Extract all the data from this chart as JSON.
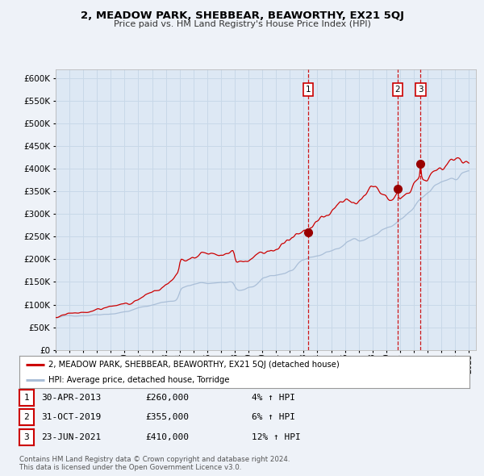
{
  "title": "2, MEADOW PARK, SHEBBEAR, BEAWORTHY, EX21 5QJ",
  "subtitle": "Price paid vs. HM Land Registry's House Price Index (HPI)",
  "background_color": "#eef2f8",
  "plot_bg_color": "#dde8f4",
  "grid_color": "#c8d8e8",
  "red_line_color": "#cc0000",
  "blue_line_color": "#aabfd8",
  "sale_dot_color": "#990000",
  "vline_color": "#cc0000",
  "legend_label_red": "2, MEADOW PARK, SHEBBEAR, BEAWORTHY, EX21 5QJ (detached house)",
  "legend_label_blue": "HPI: Average price, detached house, Torridge",
  "sales": [
    {
      "label": "1",
      "date": 2013.33,
      "price": 260000,
      "display_date": "30-APR-2013",
      "display_price": "£260,000",
      "pct": "4%",
      "direction": "↑"
    },
    {
      "label": "2",
      "date": 2019.83,
      "price": 355000,
      "display_date": "31-OCT-2019",
      "display_price": "£355,000",
      "pct": "6%",
      "direction": "↑"
    },
    {
      "label": "3",
      "date": 2021.48,
      "price": 410000,
      "display_date": "23-JUN-2021",
      "display_price": "£410,000",
      "pct": "12%",
      "direction": "↑"
    }
  ],
  "footer_line1": "Contains HM Land Registry data © Crown copyright and database right 2024.",
  "footer_line2": "This data is licensed under the Open Government Licence v3.0.",
  "ylim": [
    0,
    620000
  ],
  "yticks": [
    0,
    50000,
    100000,
    150000,
    200000,
    250000,
    300000,
    350000,
    400000,
    450000,
    500000,
    550000,
    600000
  ],
  "xlim_start": 1995.0,
  "xlim_end": 2025.5
}
